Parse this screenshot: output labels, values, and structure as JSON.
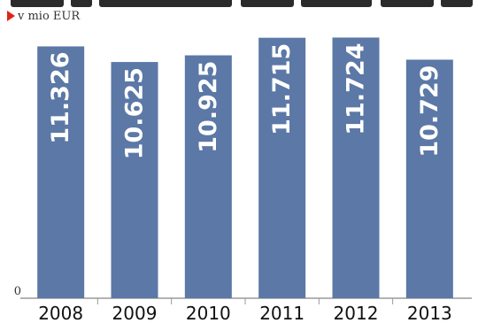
{
  "unit_label": "v mio EUR",
  "colors": {
    "bar": "#5b78a6",
    "axis": "#9a9a9a",
    "bar_text": "#ffffff",
    "marker": "#e2231a"
  },
  "chart_data": {
    "type": "bar",
    "title": "",
    "xlabel": "",
    "ylabel": "v mio EUR",
    "categories": [
      "2008",
      "2009",
      "2010",
      "2011",
      "2012",
      "2013"
    ],
    "values": [
      11.326,
      10.625,
      10.925,
      11.715,
      11.724,
      10.729
    ],
    "value_labels": [
      "11.326",
      "10.625",
      "10.925",
      "11.715",
      "11.724",
      "10.729"
    ],
    "y_tick_labels": [
      "0"
    ],
    "ylim": [
      0,
      12.1
    ],
    "grid": false,
    "legend": "none"
  }
}
